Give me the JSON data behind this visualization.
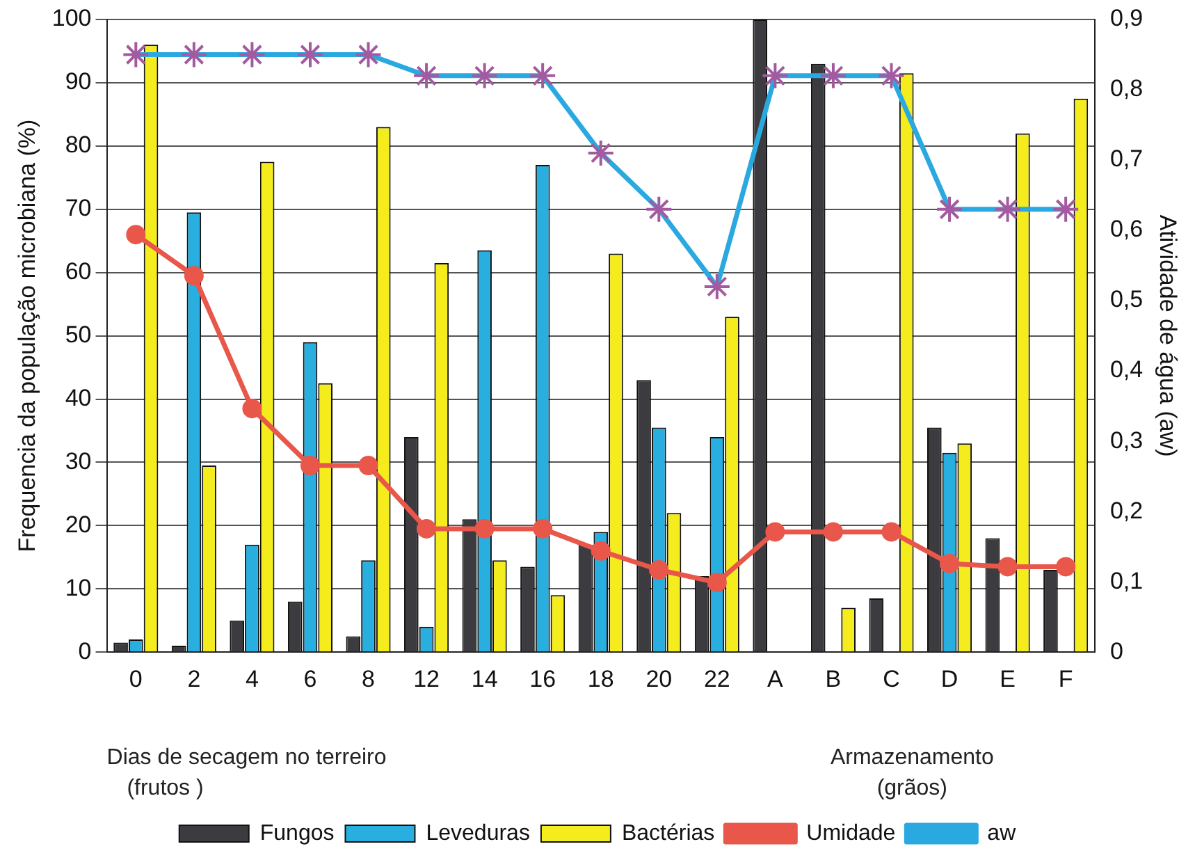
{
  "chart_data": {
    "type": "bar",
    "categories": [
      "0",
      "2",
      "4",
      "6",
      "8",
      "12",
      "14",
      "16",
      "18",
      "20",
      "22",
      "A",
      "B",
      "C",
      "D",
      "E",
      "F"
    ],
    "series": [
      {
        "name": "Fungos",
        "color": "#3c3c40",
        "values": [
          1.5,
          1,
          5,
          8,
          2.5,
          34,
          21,
          13.5,
          17,
          43,
          12,
          100,
          93,
          8.5,
          35.5,
          18,
          13
        ]
      },
      {
        "name": "Leveduras",
        "color": "#29aee0",
        "values": [
          2,
          69.5,
          17,
          49,
          14.5,
          4,
          63.5,
          77,
          19,
          35.5,
          34,
          0,
          0,
          0,
          31.5,
          0,
          0
        ]
      },
      {
        "name": "Bactérias",
        "color": "#f5ec1e",
        "values": [
          96,
          29.5,
          77.5,
          42.5,
          83,
          61.5,
          14.5,
          9,
          63,
          22,
          53,
          0,
          7,
          91.5,
          33,
          82,
          87.5
        ]
      },
      {
        "name": "Umidade",
        "type": "line",
        "color": "#e8574a",
        "marker": "circle",
        "values": [
          66,
          59.5,
          38.5,
          29.5,
          29.5,
          19.5,
          19.5,
          19.5,
          16,
          13,
          11,
          19,
          19,
          19,
          14,
          13.5,
          13.5
        ]
      },
      {
        "name": "aw",
        "type": "line",
        "axis": "y2",
        "color": "#2aa9e0",
        "marker": "cross",
        "values": [
          0.85,
          0.85,
          0.85,
          0.85,
          0.85,
          0.82,
          0.82,
          0.82,
          0.71,
          0.63,
          0.52,
          0.82,
          0.82,
          0.82,
          0.63,
          0.63,
          0.63
        ]
      }
    ],
    "ylabel": "Frequencia da população microbiana (%)",
    "y2label": "Atividade de água (aw)",
    "ylim": [
      0,
      100
    ],
    "yticks": [
      0,
      10,
      20,
      30,
      40,
      50,
      60,
      70,
      80,
      90,
      100
    ],
    "y2lim": [
      0,
      0.9
    ],
    "y2ticks": [
      {
        "value": 0,
        "label": "0"
      },
      {
        "value": 0.1,
        "label": "0,1"
      },
      {
        "value": 0.2,
        "label": "0,2"
      },
      {
        "value": 0.3,
        "label": "0,3"
      },
      {
        "value": 0.4,
        "label": "0,4"
      },
      {
        "value": 0.5,
        "label": "0,5"
      },
      {
        "value": 0.6,
        "label": "0,6"
      },
      {
        "value": 0.7,
        "label": "0,7"
      },
      {
        "value": 0.8,
        "label": "0,8"
      },
      {
        "value": 0.9,
        "label": "0,9"
      }
    ],
    "annotations": [
      "Dias de secagem no terreiro\n(frutos )",
      "Armazenamento\n(grãos)"
    ],
    "grid": "y",
    "legend": "bottom"
  }
}
